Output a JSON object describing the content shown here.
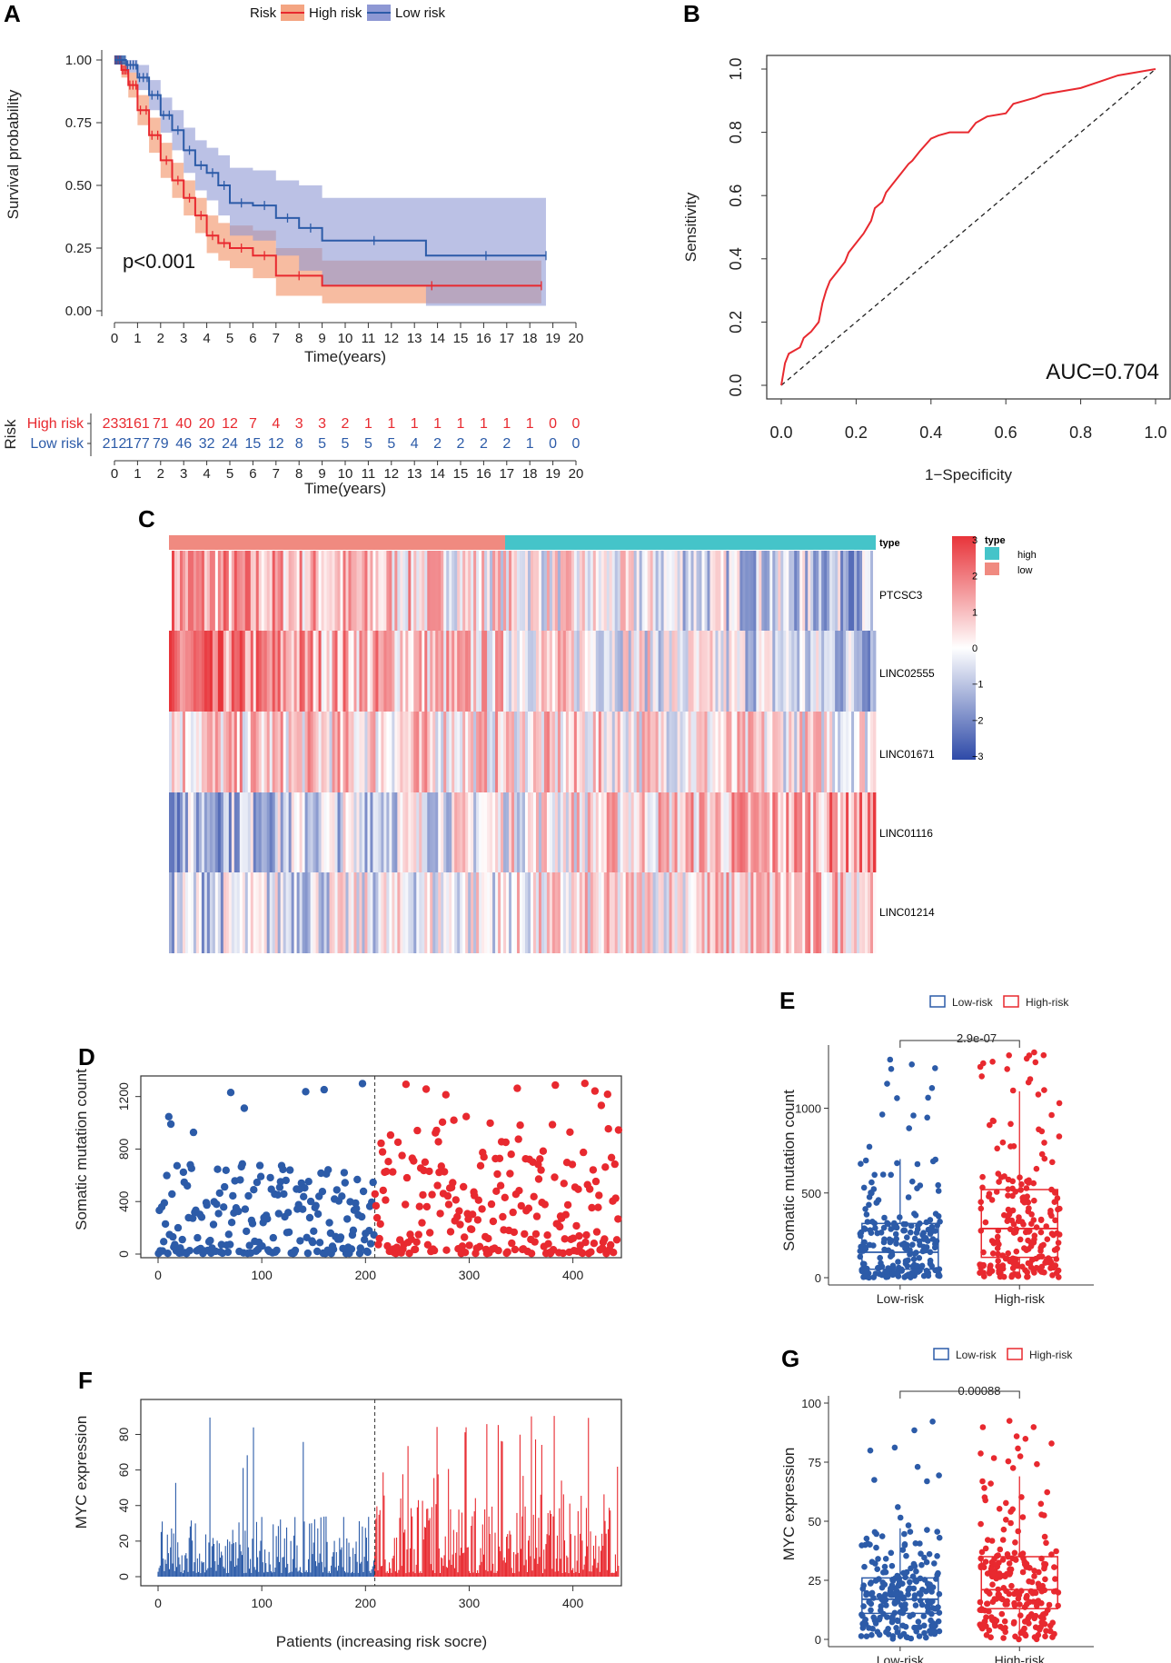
{
  "colors": {
    "high": "#e8292f",
    "low": "#2c5ba8",
    "highFill": "#f4a582",
    "lowFill": "#8e98d4",
    "teal": "#45c4c9",
    "salmon": "#f08a80",
    "axis": "#333333"
  },
  "panels": {
    "a": "A",
    "b": "B",
    "c": "C",
    "d": "D",
    "e": "E",
    "f": "F",
    "g": "G"
  },
  "chart_data": [
    {
      "id": "A",
      "type": "line",
      "title": "",
      "legend": {
        "title": "Risk",
        "items": [
          "High risk",
          "Low risk"
        ]
      },
      "xlabel": "Time(years)",
      "ylabel": "Survival probability",
      "xlim": [
        0,
        20
      ],
      "ylim": [
        0,
        1
      ],
      "xticks": [
        "0",
        "1",
        "2",
        "3",
        "4",
        "5",
        "6",
        "7",
        "8",
        "9",
        "10",
        "11",
        "12",
        "13",
        "14",
        "15",
        "16",
        "17",
        "18",
        "19",
        "20"
      ],
      "yticks": [
        "0.00",
        "0.25",
        "0.50",
        "0.75",
        "1.00"
      ],
      "annotation": "p<0.001",
      "series": [
        {
          "name": "High risk",
          "x": [
            0,
            0.3,
            0.6,
            1,
            1.5,
            2,
            2.5,
            3,
            3.5,
            4,
            4.5,
            5,
            6,
            7,
            9,
            18.5
          ],
          "y": [
            1,
            0.96,
            0.9,
            0.8,
            0.7,
            0.6,
            0.52,
            0.45,
            0.38,
            0.3,
            0.27,
            0.25,
            0.22,
            0.14,
            0.1,
            0.1
          ],
          "lower": [
            1,
            0.93,
            0.85,
            0.74,
            0.63,
            0.53,
            0.45,
            0.38,
            0.31,
            0.23,
            0.2,
            0.17,
            0.13,
            0.06,
            0.03,
            0.03
          ],
          "upper": [
            1,
            0.99,
            0.95,
            0.86,
            0.77,
            0.67,
            0.59,
            0.52,
            0.45,
            0.38,
            0.35,
            0.34,
            0.32,
            0.25,
            0.2,
            0.2
          ]
        },
        {
          "name": "Low risk",
          "x": [
            0,
            0.5,
            1,
            1.5,
            2,
            2.5,
            3,
            3.5,
            4,
            4.5,
            5,
            6,
            7,
            8,
            9,
            13.5,
            18.7
          ],
          "y": [
            1,
            0.98,
            0.93,
            0.86,
            0.78,
            0.72,
            0.64,
            0.58,
            0.55,
            0.5,
            0.43,
            0.42,
            0.37,
            0.33,
            0.28,
            0.22,
            0.22
          ],
          "lower": [
            1,
            0.95,
            0.88,
            0.8,
            0.71,
            0.64,
            0.55,
            0.48,
            0.44,
            0.38,
            0.3,
            0.28,
            0.22,
            0.16,
            0.1,
            0.02,
            0.02
          ],
          "upper": [
            1,
            1,
            0.98,
            0.92,
            0.85,
            0.8,
            0.73,
            0.68,
            0.65,
            0.62,
            0.57,
            0.56,
            0.52,
            0.5,
            0.45,
            0.45,
            0.45
          ]
        }
      ]
    },
    {
      "id": "A-table",
      "type": "table",
      "title": "Risk",
      "rows": [
        {
          "name": "High risk",
          "values": [
            "233",
            "161",
            "71",
            "40",
            "20",
            "12",
            "7",
            "4",
            "3",
            "3",
            "2",
            "1",
            "1",
            "1",
            "1",
            "1",
            "1",
            "1",
            "1",
            "0",
            "0"
          ]
        },
        {
          "name": "Low risk",
          "values": [
            "212",
            "177",
            "79",
            "46",
            "32",
            "24",
            "15",
            "12",
            "8",
            "5",
            "5",
            "5",
            "5",
            "4",
            "2",
            "2",
            "2",
            "2",
            "1",
            "0",
            "0"
          ]
        }
      ],
      "xlabel": "Time(years)"
    },
    {
      "id": "B",
      "type": "line",
      "title": "",
      "xlabel": "1−Specificity",
      "ylabel": "Sensitivity",
      "xlim": [
        0,
        1
      ],
      "ylim": [
        0,
        1
      ],
      "xticks": [
        "0.0",
        "0.2",
        "0.4",
        "0.6",
        "0.8",
        "1.0"
      ],
      "yticks": [
        "0.0",
        "0.2",
        "0.4",
        "0.6",
        "0.8",
        "1.0"
      ],
      "annotation": "AUC=0.704",
      "x": [
        0,
        0.01,
        0.02,
        0.05,
        0.06,
        0.08,
        0.1,
        0.11,
        0.12,
        0.13,
        0.15,
        0.17,
        0.18,
        0.2,
        0.22,
        0.24,
        0.25,
        0.27,
        0.28,
        0.3,
        0.32,
        0.34,
        0.35,
        0.37,
        0.4,
        0.42,
        0.45,
        0.5,
        0.52,
        0.55,
        0.6,
        0.62,
        0.65,
        0.68,
        0.7,
        0.75,
        0.8,
        0.85,
        0.9,
        0.95,
        1.0
      ],
      "y": [
        0,
        0.07,
        0.1,
        0.12,
        0.15,
        0.17,
        0.2,
        0.26,
        0.3,
        0.33,
        0.36,
        0.39,
        0.42,
        0.45,
        0.48,
        0.52,
        0.56,
        0.58,
        0.61,
        0.64,
        0.67,
        0.7,
        0.71,
        0.74,
        0.78,
        0.79,
        0.8,
        0.8,
        0.83,
        0.85,
        0.86,
        0.89,
        0.9,
        0.91,
        0.92,
        0.93,
        0.94,
        0.96,
        0.98,
        0.99,
        1.0
      ]
    },
    {
      "id": "C",
      "type": "heatmap",
      "rows": [
        "PTCSC3",
        "LINC02555",
        "LINC01671",
        "LINC01116",
        "LINC01214"
      ],
      "annotation_label": "type",
      "legend": {
        "title": "type",
        "items": [
          "high",
          "low"
        ]
      },
      "scale": [
        "3",
        "2",
        "1",
        "0",
        "−1",
        "−2",
        "−3"
      ]
    },
    {
      "id": "D",
      "type": "scatter",
      "xlabel": "",
      "ylabel": "Somatic mutation count",
      "xlim": [
        0,
        445
      ],
      "ylim": [
        0,
        1350
      ],
      "xticks": [
        "0",
        "100",
        "200",
        "300",
        "400"
      ],
      "yticks": [
        "0",
        "400",
        "800",
        "1200"
      ],
      "cutoff": 209,
      "series": [
        {
          "name": "Low risk",
          "n": 209
        },
        {
          "name": "High risk",
          "n": 236
        }
      ]
    },
    {
      "id": "E",
      "type": "box",
      "legend": {
        "items": [
          "Low-risk",
          "High-risk"
        ]
      },
      "ylabel": "Somatic mutation count",
      "categories": [
        "Low-risk",
        "High-risk"
      ],
      "yticks": [
        "0",
        "500",
        "1000"
      ],
      "ylim": [
        0,
        1400
      ],
      "pvalue": "2.9e-07",
      "boxes": [
        {
          "q1": 50,
          "median": 150,
          "q3": 320,
          "whisker_hi": 700
        },
        {
          "q1": 120,
          "median": 290,
          "q3": 520,
          "whisker_hi": 1100
        }
      ]
    },
    {
      "id": "F",
      "type": "bar",
      "xlabel": "Patients (increasing risk socre)",
      "ylabel": "MYC expression",
      "xlim": [
        0,
        445
      ],
      "ylim": [
        0,
        92
      ],
      "xticks": [
        "0",
        "100",
        "200",
        "300",
        "400"
      ],
      "yticks": [
        "0",
        "20",
        "40",
        "60",
        "80"
      ],
      "cutoff": 209
    },
    {
      "id": "G",
      "type": "box",
      "legend": {
        "items": [
          "Low-risk",
          "High-risk"
        ]
      },
      "ylabel": "MYC expression",
      "categories": [
        "Low-risk",
        "High-risk"
      ],
      "yticks": [
        "0",
        "25",
        "50",
        "75",
        "100"
      ],
      "ylim": [
        0,
        100
      ],
      "pvalue": "0.00088",
      "boxes": [
        {
          "q1": 11,
          "median": 17,
          "q3": 26,
          "whisker_hi": 47
        },
        {
          "q1": 13,
          "median": 21,
          "q3": 35,
          "whisker_hi": 69
        }
      ]
    }
  ]
}
